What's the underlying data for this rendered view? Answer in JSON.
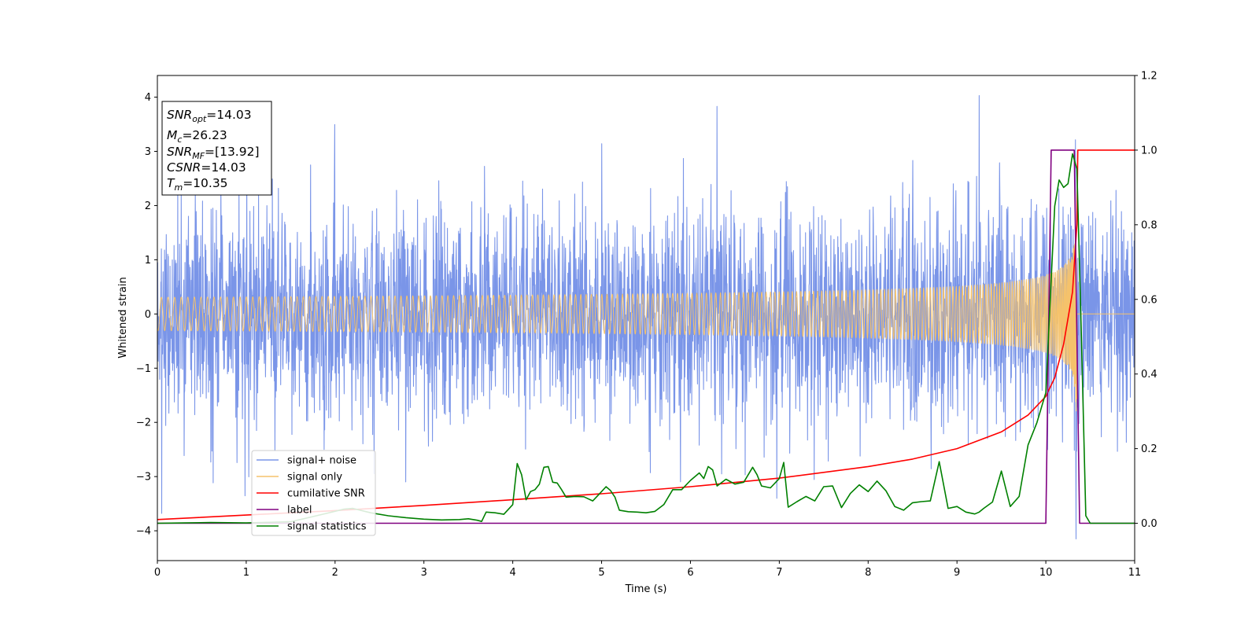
{
  "chart_data": {
    "type": "line",
    "xlabel": "Time (s)",
    "ylabel": "Whitened strain",
    "xlim": [
      0,
      11
    ],
    "ylim_left": [
      -4.55,
      4.4
    ],
    "ylim_right": [
      -0.1,
      1.2
    ],
    "x_ticks": [
      "0",
      "1",
      "2",
      "3",
      "4",
      "5",
      "6",
      "7",
      "8",
      "9",
      "10",
      "11"
    ],
    "y_ticks_left": [
      "4",
      "3",
      "2",
      "1",
      "0",
      "−1",
      "−2",
      "−3",
      "−4"
    ],
    "y_ticks_right": [
      "1.2",
      "1.0",
      "0.8",
      "0.6",
      "0.4",
      "0.2",
      "0.0"
    ],
    "grid": false,
    "legend_position": "lower-left",
    "info_box": [
      {
        "main": "SNR",
        "sub": "opt",
        "rest": "=14.03"
      },
      {
        "main": "M",
        "sub": "c",
        "rest": "=26.23"
      },
      {
        "main": "SNR",
        "sub": "MF",
        "rest": "=[13.92]"
      },
      {
        "main": "CSNR",
        "sub": "",
        "rest": "=14.03"
      },
      {
        "main": "T",
        "sub": "m",
        "rest": "=10.35"
      }
    ],
    "series": [
      {
        "name": "signal+ noise",
        "color": "#7a95e8",
        "axis": "left",
        "kind": "noise",
        "sigma": 0.95,
        "extremes": [
          4.03,
          -4.15
        ]
      },
      {
        "name": "signal only",
        "color": "#f5c26b",
        "axis": "left",
        "kind": "chirp",
        "merger_time": 10.35,
        "peak_amplitude": 2.2
      },
      {
        "name": "cumilative SNR",
        "color": "#ff0000",
        "axis": "right",
        "x": [
          0,
          1,
          2,
          3,
          4,
          5,
          6,
          7,
          8,
          8.5,
          9,
          9.5,
          9.8,
          10,
          10.1,
          10.2,
          10.3,
          10.35,
          10.36,
          11
        ],
        "y": [
          0.01,
          0.022,
          0.034,
          0.048,
          0.063,
          0.079,
          0.098,
          0.121,
          0.152,
          0.172,
          0.2,
          0.245,
          0.29,
          0.34,
          0.39,
          0.48,
          0.62,
          0.8,
          1.0,
          1.0
        ]
      },
      {
        "name": "label",
        "color": "#800080",
        "axis": "right",
        "x": [
          0,
          10.0,
          10.06,
          10.32,
          10.38,
          11
        ],
        "y": [
          0,
          0,
          1,
          1,
          0,
          0
        ]
      },
      {
        "name": "signal statistics",
        "color": "#008000",
        "axis": "right",
        "x": [
          0,
          0.3,
          0.6,
          1,
          1.5,
          2,
          2.1,
          2.2,
          2.4,
          2.6,
          2.8,
          3,
          3.2,
          3.4,
          3.5,
          3.6,
          3.65,
          3.7,
          3.8,
          3.9,
          4.0,
          4.05,
          4.1,
          4.15,
          4.2,
          4.25,
          4.3,
          4.35,
          4.4,
          4.45,
          4.5,
          4.55,
          4.6,
          4.7,
          4.8,
          4.9,
          5.0,
          5.05,
          5.1,
          5.15,
          5.2,
          5.3,
          5.4,
          5.5,
          5.6,
          5.7,
          5.8,
          5.9,
          6.0,
          6.1,
          6.15,
          6.2,
          6.25,
          6.3,
          6.4,
          6.5,
          6.6,
          6.7,
          6.75,
          6.8,
          6.9,
          7.0,
          7.05,
          7.1,
          7.2,
          7.3,
          7.4,
          7.5,
          7.6,
          7.7,
          7.8,
          7.9,
          8.0,
          8.1,
          8.2,
          8.3,
          8.4,
          8.5,
          8.6,
          8.7,
          8.8,
          8.9,
          9.0,
          9.1,
          9.2,
          9.25,
          9.3,
          9.4,
          9.5,
          9.6,
          9.7,
          9.8,
          9.9,
          10.0,
          10.05,
          10.1,
          10.15,
          10.2,
          10.25,
          10.3,
          10.35,
          10.4,
          10.45,
          10.5,
          10.6,
          11
        ],
        "y": [
          0,
          0.001,
          0.002,
          0.001,
          0.004,
          0.032,
          0.038,
          0.04,
          0.028,
          0.02,
          0.015,
          0.011,
          0.009,
          0.01,
          0.012,
          0.008,
          0.005,
          0.03,
          0.028,
          0.024,
          0.05,
          0.16,
          0.13,
          0.063,
          0.085,
          0.09,
          0.105,
          0.15,
          0.152,
          0.11,
          0.108,
          0.09,
          0.07,
          0.072,
          0.071,
          0.06,
          0.085,
          0.098,
          0.088,
          0.07,
          0.035,
          0.031,
          0.03,
          0.028,
          0.032,
          0.05,
          0.09,
          0.09,
          0.115,
          0.135,
          0.12,
          0.152,
          0.143,
          0.1,
          0.118,
          0.105,
          0.11,
          0.15,
          0.13,
          0.1,
          0.095,
          0.12,
          0.163,
          0.043,
          0.058,
          0.072,
          0.06,
          0.098,
          0.1,
          0.042,
          0.08,
          0.103,
          0.085,
          0.113,
          0.087,
          0.045,
          0.035,
          0.055,
          0.058,
          0.06,
          0.165,
          0.04,
          0.045,
          0.03,
          0.025,
          0.03,
          0.04,
          0.057,
          0.14,
          0.045,
          0.072,
          0.21,
          0.27,
          0.35,
          0.6,
          0.85,
          0.92,
          0.9,
          0.91,
          0.99,
          0.95,
          0.5,
          0.02,
          0.0,
          0.0,
          0.0
        ]
      }
    ]
  }
}
